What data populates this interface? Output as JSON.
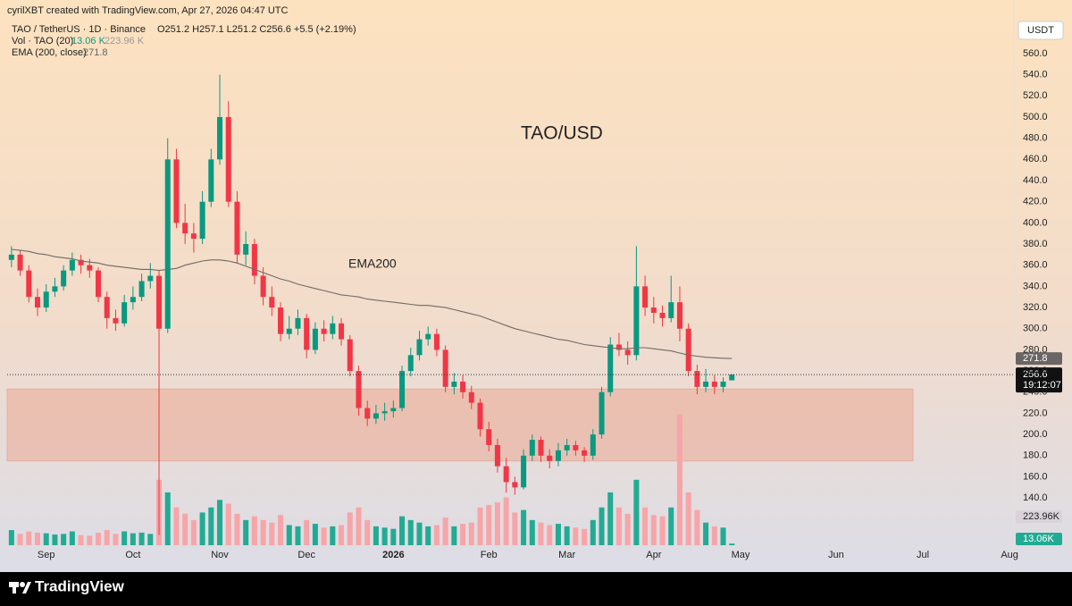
{
  "chart_data": {
    "type": "candlestick",
    "title": "TAO/USD",
    "header": "cyrilXBT created with TradingView.com, Apr 27, 2026 04:47 UTC",
    "legend": {
      "symbol": "TAO / TetherUS · 1D · Binance",
      "ohlc": "O251.2  H257.1  L251.2  C256.6  +5.5 (+2.19%)",
      "volume_name": "Vol · TAO (20)",
      "volume_last": "13.06 K",
      "volume_ma": "223.96 K",
      "ema_name": "EMA (200, close)",
      "ema_last": "271.8"
    },
    "currency": "USDT",
    "brand": "TradingView",
    "ylim": [
      70,
      587
    ],
    "yticks": [
      {
        "value": 140,
        "label": "140.0"
      },
      {
        "value": 160,
        "label": "160.0"
      },
      {
        "value": 180,
        "label": "180.0"
      },
      {
        "value": 200,
        "label": "200.0"
      },
      {
        "value": 220,
        "label": "220.0"
      },
      {
        "value": 240,
        "label": "240.0"
      },
      {
        "value": 260,
        "label": "260.0"
      },
      {
        "value": 280,
        "label": "280.0"
      },
      {
        "value": 300,
        "label": "300.0"
      },
      {
        "value": 320,
        "label": "320.0"
      },
      {
        "value": 340,
        "label": "340.0"
      },
      {
        "value": 360,
        "label": "360.0"
      },
      {
        "value": 380,
        "label": "380.0"
      },
      {
        "value": 400,
        "label": "400.0"
      },
      {
        "value": 420,
        "label": "420.0"
      },
      {
        "value": 440,
        "label": "440.0"
      },
      {
        "value": 460,
        "label": "460.0"
      },
      {
        "value": 480,
        "label": "480.0"
      },
      {
        "value": 500,
        "label": "500.0"
      },
      {
        "value": 520,
        "label": "520.0"
      },
      {
        "value": 540,
        "label": "540.0"
      },
      {
        "value": 560,
        "label": "560.0"
      }
    ],
    "xlim": [
      -0.5,
      115.5
    ],
    "xticks": [
      {
        "value": 4,
        "label": "Sep"
      },
      {
        "value": 14,
        "label": "Oct"
      },
      {
        "value": 24,
        "label": "Nov"
      },
      {
        "value": 34,
        "label": "Dec"
      },
      {
        "value": 44,
        "label": "2026"
      },
      {
        "value": 55,
        "label": "Feb"
      },
      {
        "value": 64,
        "label": "Mar"
      },
      {
        "value": 74,
        "label": "Apr"
      },
      {
        "value": 84,
        "label": "May"
      },
      {
        "value": 95,
        "label": "Jun"
      },
      {
        "value": 105,
        "label": "Jul"
      },
      {
        "value": 115,
        "label": "Aug"
      }
    ],
    "open": [
      365,
      370,
      355,
      330,
      320,
      335,
      340,
      355,
      365,
      360,
      355,
      330,
      310,
      305,
      325,
      330,
      345,
      350,
      300,
      460,
      400,
      390,
      385,
      420,
      460,
      500,
      420,
      370,
      380,
      350,
      330,
      320,
      295,
      300,
      310,
      280,
      300,
      295,
      305,
      290,
      260,
      225,
      215,
      220,
      222,
      225,
      260,
      275,
      290,
      295,
      280,
      245,
      250,
      240,
      230,
      205,
      190,
      170,
      155,
      150,
      180,
      195,
      180,
      175,
      185,
      190,
      185,
      180,
      200,
      240,
      285,
      280,
      275,
      340,
      320,
      315,
      310,
      325,
      300,
      260,
      245,
      250,
      245,
      251.2
    ],
    "high": [
      378,
      374,
      360,
      338,
      342,
      348,
      360,
      372,
      370,
      366,
      358,
      335,
      318,
      332,
      340,
      352,
      362,
      355,
      480,
      470,
      418,
      400,
      430,
      470,
      540,
      515,
      430,
      392,
      385,
      358,
      340,
      325,
      312,
      318,
      314,
      306,
      308,
      312,
      310,
      294,
      265,
      232,
      228,
      230,
      232,
      265,
      282,
      298,
      302,
      300,
      284,
      258,
      256,
      246,
      234,
      212,
      196,
      178,
      160,
      186,
      200,
      198,
      186,
      192,
      196,
      194,
      188,
      205,
      245,
      292,
      296,
      288,
      378,
      350,
      330,
      322,
      350,
      340,
      305,
      266,
      262,
      256,
      254,
      257.1
    ],
    "low": [
      358,
      350,
      325,
      312,
      316,
      330,
      336,
      350,
      352,
      348,
      325,
      300,
      298,
      302,
      318,
      326,
      338,
      105,
      296,
      395,
      380,
      372,
      380,
      415,
      455,
      415,
      362,
      360,
      342,
      322,
      312,
      288,
      290,
      294,
      272,
      276,
      288,
      290,
      284,
      255,
      218,
      208,
      210,
      213,
      216,
      222,
      255,
      270,
      284,
      274,
      240,
      238,
      234,
      224,
      198,
      184,
      164,
      145,
      143,
      148,
      175,
      174,
      168,
      170,
      180,
      180,
      174,
      176,
      196,
      236,
      274,
      266,
      270,
      312,
      305,
      302,
      306,
      288,
      255,
      238,
      240,
      238,
      240,
      251.2
    ],
    "close": [
      370,
      355,
      330,
      320,
      335,
      340,
      355,
      365,
      360,
      355,
      330,
      310,
      305,
      325,
      330,
      345,
      350,
      300,
      460,
      400,
      390,
      385,
      420,
      460,
      500,
      420,
      370,
      380,
      350,
      330,
      320,
      295,
      300,
      310,
      280,
      300,
      295,
      305,
      290,
      260,
      225,
      215,
      220,
      222,
      225,
      260,
      275,
      290,
      295,
      280,
      245,
      250,
      240,
      230,
      205,
      190,
      170,
      155,
      150,
      180,
      195,
      180,
      175,
      185,
      190,
      185,
      180,
      200,
      240,
      285,
      280,
      275,
      340,
      320,
      315,
      310,
      325,
      300,
      260,
      245,
      250,
      245,
      250,
      256.6
    ],
    "volume": [
      120000,
      90000,
      110000,
      100000,
      95000,
      85000,
      90000,
      110000,
      80000,
      75000,
      100000,
      120000,
      90000,
      110000,
      95000,
      100000,
      90000,
      520000,
      420000,
      300000,
      250000,
      200000,
      260000,
      300000,
      360000,
      330000,
      250000,
      200000,
      230000,
      200000,
      180000,
      240000,
      160000,
      150000,
      200000,
      170000,
      140000,
      150000,
      160000,
      260000,
      300000,
      200000,
      150000,
      140000,
      130000,
      230000,
      200000,
      180000,
      150000,
      160000,
      220000,
      150000,
      170000,
      180000,
      300000,
      320000,
      340000,
      380000,
      260000,
      280000,
      200000,
      180000,
      160000,
      170000,
      150000,
      140000,
      130000,
      200000,
      300000,
      420000,
      300000,
      250000,
      520000,
      300000,
      240000,
      230000,
      300000,
      1040000,
      420000,
      280000,
      180000,
      150000,
      140000,
      13060
    ],
    "volume_ylim": [
      0,
      1520000
    ],
    "ema": {
      "name": "EMA200",
      "color": "#6f6a66",
      "values": [
        375,
        374,
        373,
        371,
        370,
        368,
        367,
        366,
        364,
        363,
        362,
        360,
        359,
        358,
        357,
        356,
        356,
        355,
        356,
        357,
        360,
        362,
        364,
        365,
        365,
        364,
        362,
        359,
        356,
        353,
        350,
        347,
        345,
        342,
        340,
        338,
        336,
        334,
        332,
        331,
        330,
        328,
        327,
        326,
        325,
        324,
        323,
        322,
        322,
        321,
        320,
        318,
        316,
        314,
        312,
        309,
        306,
        303,
        300,
        298,
        296,
        294,
        292,
        290,
        289,
        287,
        285,
        284,
        283,
        282,
        281,
        281,
        282,
        282,
        281,
        280,
        279,
        277,
        275,
        274,
        273,
        272.5,
        272.1,
        271.8
      ]
    },
    "zone": [
      175,
      243
    ],
    "price_labels": {
      "ema": "271.8",
      "price": "256.6",
      "countdown": "19:12:07",
      "volume_ma": "223.96K",
      "volume": "13.06K"
    },
    "up_color": "#089981",
    "down_color": "#f23645",
    "volume_up_color": "#22ab94",
    "volume_down_color": "#f7a5a8"
  }
}
